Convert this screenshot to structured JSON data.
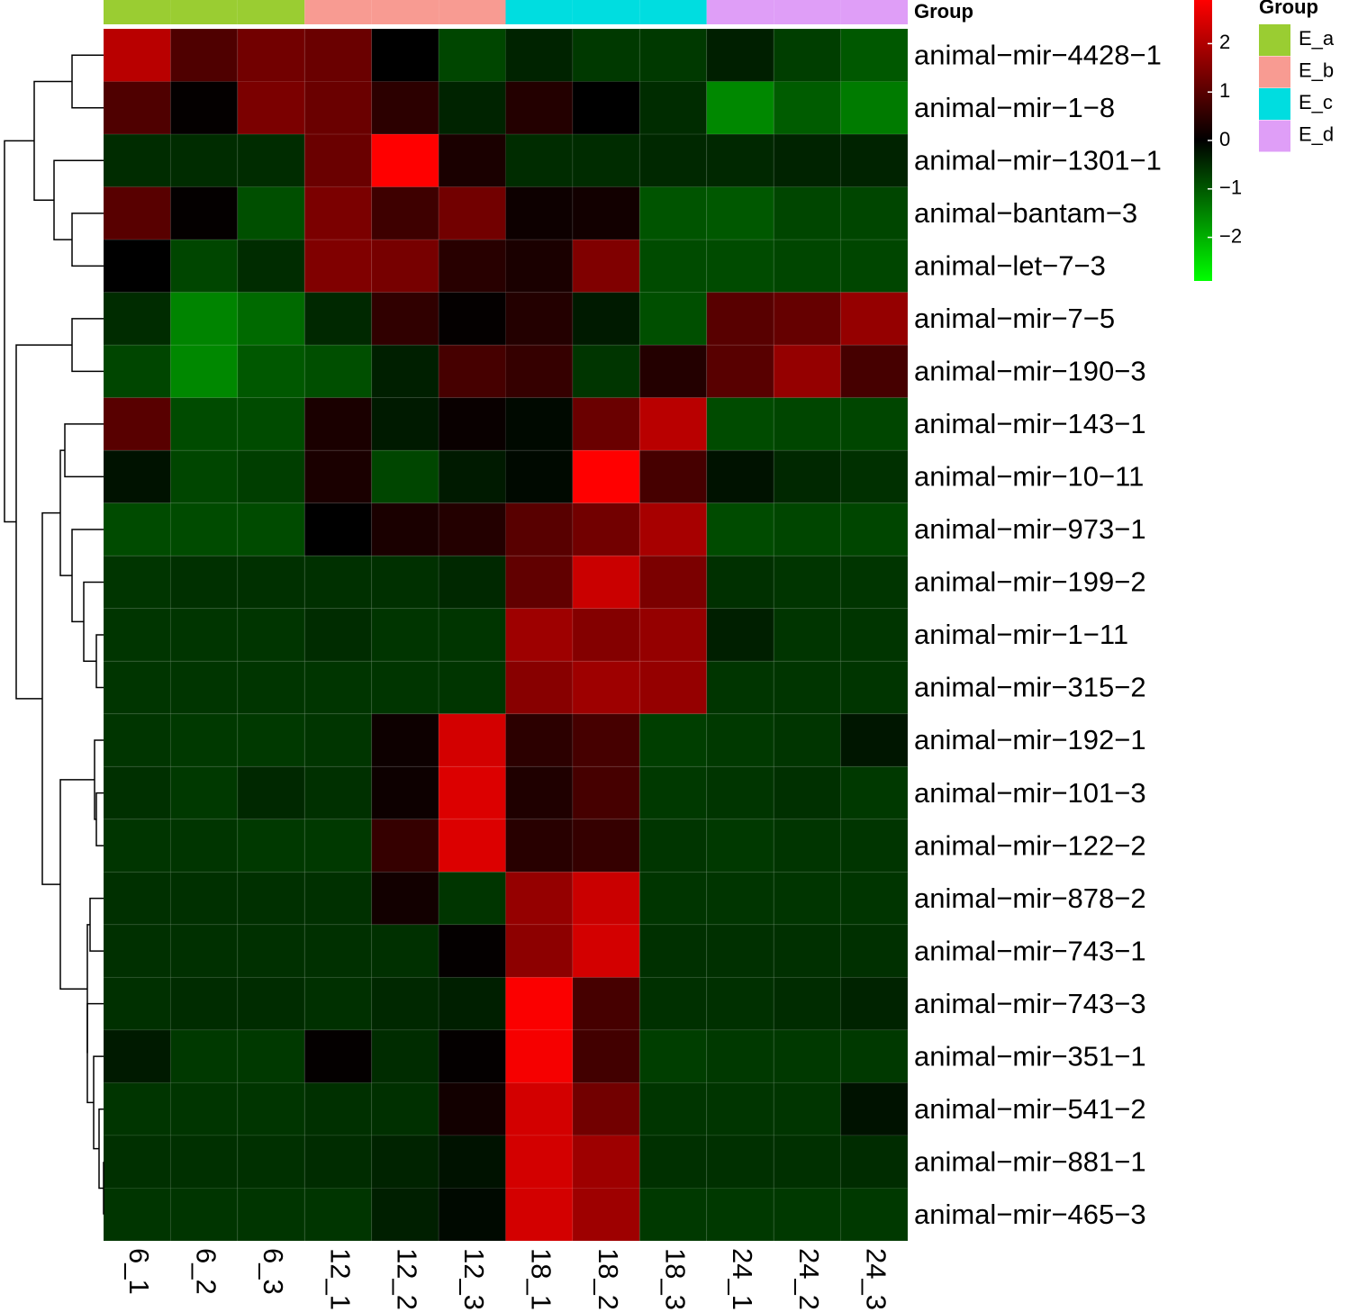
{
  "chart_data": {
    "type": "heatmap",
    "x": [
      "6_1",
      "6_2",
      "6_3",
      "12_1",
      "12_2",
      "12_3",
      "18_1",
      "18_2",
      "18_3",
      "24_1",
      "24_2",
      "24_3"
    ],
    "y": [
      "animal−mir−4428−1",
      "animal−mir−1−8",
      "animal−mir−1301−1",
      "animal−bantam−3",
      "animal−let−7−3",
      "animal−mir−7−5",
      "animal−mir−190−3",
      "animal−mir−143−1",
      "animal−mir−10−11",
      "animal−mir−973−1",
      "animal−mir−199−2",
      "animal−mir−1−11",
      "animal−mir−315−2",
      "animal−mir−192−1",
      "animal−mir−101−3",
      "animal−mir−122−2",
      "animal−mir−878−2",
      "animal−mir−743−1",
      "animal−mir−743−3",
      "animal−mir−351−1",
      "animal−mir−541−2",
      "animal−mir−881−1",
      "animal−mir−465−3"
    ],
    "values": [
      [
        2.1,
        0.9,
        1.3,
        1.2,
        0,
        -0.8,
        -0.4,
        -0.65,
        -0.65,
        -0.35,
        -0.7,
        -1.0
      ],
      [
        0.9,
        0.05,
        1.4,
        1.2,
        0.5,
        -0.4,
        0.4,
        0,
        -0.5,
        -1.55,
        -1.05,
        -1.4
      ],
      [
        -0.5,
        -0.5,
        -0.5,
        1.2,
        2.9,
        0.3,
        -0.5,
        -0.5,
        -0.45,
        -0.45,
        -0.4,
        -0.4
      ],
      [
        1.0,
        0.05,
        -0.9,
        1.4,
        0.7,
        1.3,
        0.15,
        0.2,
        -0.95,
        -1.0,
        -0.8,
        -0.8
      ],
      [
        0,
        -0.8,
        -0.5,
        1.45,
        1.35,
        0.45,
        0.3,
        1.45,
        -0.85,
        -0.85,
        -0.8,
        -0.8
      ],
      [
        -0.5,
        -1.5,
        -1.2,
        -0.45,
        0.55,
        0.05,
        0.4,
        -0.3,
        -0.9,
        1.0,
        1.15,
        1.7
      ],
      [
        -0.8,
        -1.55,
        -1.0,
        -0.9,
        -0.35,
        0.8,
        0.6,
        -0.6,
        0.4,
        1.0,
        1.7,
        0.8
      ],
      [
        1.0,
        -0.85,
        -0.85,
        0.3,
        -0.3,
        0.1,
        -0.1,
        1.2,
        2.1,
        -0.85,
        -0.8,
        -0.8
      ],
      [
        -0.2,
        -0.8,
        -0.7,
        0.3,
        -0.8,
        -0.3,
        -0.1,
        2.9,
        0.8,
        -0.2,
        -0.45,
        -0.55
      ],
      [
        -0.85,
        -0.85,
        -0.85,
        0,
        0.3,
        0.4,
        1.0,
        1.3,
        1.9,
        -0.85,
        -0.8,
        -0.8
      ],
      [
        -0.6,
        -0.55,
        -0.55,
        -0.55,
        -0.55,
        -0.45,
        1.1,
        2.3,
        1.4,
        -0.55,
        -0.6,
        -0.6
      ],
      [
        -0.6,
        -0.6,
        -0.6,
        -0.5,
        -0.6,
        -0.6,
        1.8,
        1.5,
        1.7,
        -0.35,
        -0.6,
        -0.6
      ],
      [
        -0.6,
        -0.6,
        -0.6,
        -0.6,
        -0.6,
        -0.6,
        1.55,
        1.8,
        1.7,
        -0.6,
        -0.6,
        -0.6
      ],
      [
        -0.6,
        -0.65,
        -0.65,
        -0.6,
        0.15,
        2.4,
        0.5,
        0.8,
        -0.7,
        -0.65,
        -0.6,
        -0.25
      ],
      [
        -0.55,
        -0.65,
        -0.45,
        -0.55,
        0.15,
        2.5,
        0.35,
        0.8,
        -0.65,
        -0.6,
        -0.55,
        -0.65
      ],
      [
        -0.6,
        -0.6,
        -0.65,
        -0.65,
        0.6,
        2.5,
        0.45,
        0.6,
        -0.6,
        -0.65,
        -0.6,
        -0.6
      ],
      [
        -0.55,
        -0.55,
        -0.55,
        -0.55,
        0.2,
        -0.6,
        1.7,
        2.3,
        -0.6,
        -0.6,
        -0.6,
        -0.6
      ],
      [
        -0.55,
        -0.55,
        -0.55,
        -0.55,
        -0.55,
        0.05,
        1.6,
        2.4,
        -0.55,
        -0.55,
        -0.55,
        -0.55
      ],
      [
        -0.55,
        -0.5,
        -0.5,
        -0.55,
        -0.45,
        -0.35,
        2.85,
        0.8,
        -0.55,
        -0.55,
        -0.5,
        -0.4
      ],
      [
        -0.3,
        -0.65,
        -0.65,
        0.05,
        -0.5,
        0.05,
        2.8,
        0.75,
        -0.7,
        -0.65,
        -0.65,
        -0.65
      ],
      [
        -0.6,
        -0.6,
        -0.6,
        -0.55,
        -0.55,
        0.2,
        2.4,
        1.3,
        -0.6,
        -0.6,
        -0.6,
        -0.2
      ],
      [
        -0.55,
        -0.55,
        -0.55,
        -0.5,
        -0.4,
        -0.2,
        2.4,
        1.8,
        -0.55,
        -0.55,
        -0.55,
        -0.5
      ],
      [
        -0.6,
        -0.6,
        -0.6,
        -0.6,
        -0.35,
        -0.1,
        2.4,
        1.8,
        -0.65,
        -0.65,
        -0.65,
        -0.65
      ]
    ],
    "colorlim": [
      -2.9,
      2.9
    ],
    "colorbar_ticks": [
      2,
      1,
      0,
      {
        "value": -1,
        "label": "−1"
      },
      {
        "value": -2,
        "label": "−2"
      }
    ],
    "colors": {
      "low": "#00ff00",
      "mid": "#000000",
      "high": "#ff0000"
    },
    "annotation_label": "Group",
    "legend_title": "Group",
    "groups": [
      {
        "name": "E_a",
        "color": "#9acd32"
      },
      {
        "name": "E_b",
        "color": "#f89b92"
      },
      {
        "name": "E_c",
        "color": "#00dde0"
      },
      {
        "name": "E_d",
        "color": "#df9ef7"
      }
    ],
    "column_groups": [
      0,
      0,
      0,
      1,
      1,
      1,
      2,
      2,
      2,
      3,
      3,
      3
    ]
  }
}
